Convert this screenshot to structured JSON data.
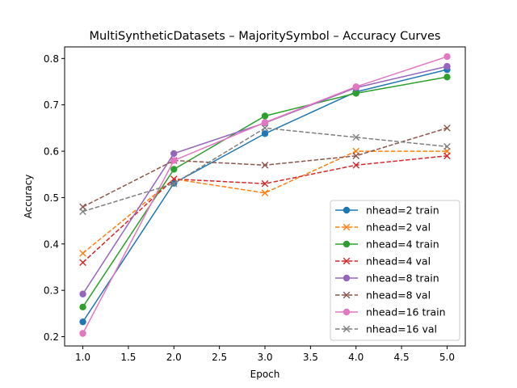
{
  "chart_data": {
    "type": "line",
    "title": "MultiSyntheticDatasets – MajoritySymbol – Accuracy Curves",
    "xlabel": "Epoch",
    "ylabel": "Accuracy",
    "xlim": [
      0.8,
      5.2
    ],
    "ylim": [
      0.18,
      0.825
    ],
    "xticks": [
      "1.0",
      "1.5",
      "2.0",
      "2.5",
      "3.0",
      "3.5",
      "4.0",
      "4.5",
      "5.0"
    ],
    "yticks": [
      "0.2",
      "0.3",
      "0.4",
      "0.5",
      "0.6",
      "0.7",
      "0.8"
    ],
    "grid": false,
    "legend_position": "lower-right",
    "x": [
      1,
      2,
      3,
      4,
      5
    ],
    "series": [
      {
        "name": "nhead=2 train",
        "color": "#1f77b4",
        "style": "solid",
        "marker": "circle",
        "values": [
          0.232,
          0.531,
          0.638,
          0.728,
          0.776
        ]
      },
      {
        "name": "nhead=2 val",
        "color": "#ff7f0e",
        "style": "dashed",
        "marker": "x",
        "values": [
          0.38,
          0.54,
          0.51,
          0.6,
          0.6
        ]
      },
      {
        "name": "nhead=4 train",
        "color": "#2ca02c",
        "style": "solid",
        "marker": "circle",
        "values": [
          0.264,
          0.561,
          0.676,
          0.725,
          0.76
        ]
      },
      {
        "name": "nhead=4 val",
        "color": "#d62728",
        "style": "dashed",
        "marker": "x",
        "values": [
          0.36,
          0.54,
          0.53,
          0.57,
          0.59
        ]
      },
      {
        "name": "nhead=8 train",
        "color": "#9467bd",
        "style": "solid",
        "marker": "circle",
        "values": [
          0.292,
          0.595,
          0.661,
          0.737,
          0.783
        ]
      },
      {
        "name": "nhead=8 val",
        "color": "#8c564b",
        "style": "dashed",
        "marker": "x",
        "values": [
          0.48,
          0.58,
          0.57,
          0.59,
          0.65
        ]
      },
      {
        "name": "nhead=16 train",
        "color": "#e377c2",
        "style": "solid",
        "marker": "circle",
        "values": [
          0.207,
          0.58,
          0.662,
          0.739,
          0.804
        ]
      },
      {
        "name": "nhead=16 val",
        "color": "#7f7f7f",
        "style": "dashed",
        "marker": "x",
        "values": [
          0.47,
          0.53,
          0.65,
          0.63,
          0.61
        ]
      }
    ]
  }
}
